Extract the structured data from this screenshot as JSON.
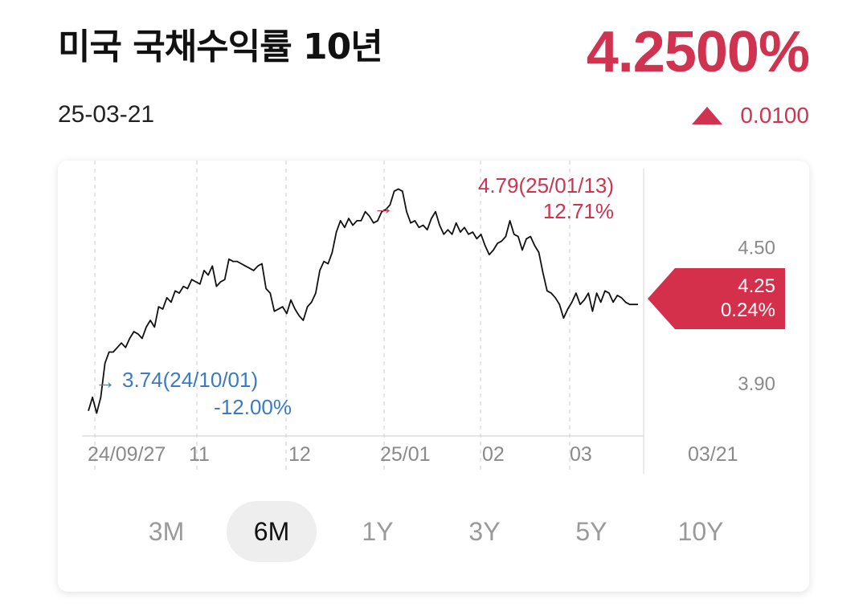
{
  "header": {
    "title": "미국 국채수익률 10년",
    "date": "25-03-21",
    "price": "4.2500%",
    "change": "0.0100",
    "change_direction": "up",
    "up_color": "#d0334f"
  },
  "chart_data": {
    "type": "line",
    "x_tick_labels": [
      "24/09/27",
      "11",
      "12",
      "25/01",
      "02",
      "03",
      "03/21"
    ],
    "y_tick_labels": [
      "4.50",
      "3.90"
    ],
    "ylim": [
      3.68,
      4.85
    ],
    "grid": "vertical dashed",
    "series": [
      {
        "color": "#111111",
        "values": [
          3.78,
          3.84,
          3.77,
          3.84,
          3.99,
          4.04,
          4.04,
          4.06,
          4.08,
          4.06,
          4.1,
          4.13,
          4.12,
          4.1,
          4.15,
          4.18,
          4.15,
          4.24,
          4.23,
          4.28,
          4.26,
          4.31,
          4.3,
          4.33,
          4.32,
          4.36,
          4.35,
          4.34,
          4.4,
          4.38,
          4.42,
          4.33,
          4.35,
          4.36,
          4.45,
          4.44,
          4.44,
          4.43,
          4.42,
          4.41,
          4.4,
          4.42,
          4.43,
          4.32,
          4.3,
          4.22,
          4.23,
          4.24,
          4.21,
          4.27,
          4.23,
          4.2,
          4.18,
          4.24,
          4.26,
          4.3,
          4.4,
          4.44,
          4.43,
          4.48,
          4.57,
          4.62,
          4.59,
          4.63,
          4.6,
          4.62,
          4.62,
          4.66,
          4.64,
          4.61,
          4.62,
          4.66,
          4.67,
          4.69,
          4.75,
          4.76,
          4.75,
          4.66,
          4.61,
          4.62,
          4.59,
          4.6,
          4.58,
          4.63,
          4.66,
          4.6,
          4.56,
          4.58,
          4.56,
          4.61,
          4.57,
          4.59,
          4.56,
          4.57,
          4.54,
          4.56,
          4.51,
          4.47,
          4.49,
          4.52,
          4.53,
          4.55,
          4.62,
          4.56,
          4.55,
          4.49,
          4.54,
          4.55,
          4.51,
          4.48,
          4.39,
          4.31,
          4.3,
          4.28,
          4.25,
          4.19,
          4.23,
          4.26,
          4.3,
          4.25,
          4.27,
          4.3,
          4.22,
          4.3,
          4.26,
          4.31,
          4.3,
          4.26,
          4.29,
          4.28,
          4.26,
          4.25,
          4.25,
          4.25
        ]
      }
    ],
    "max_annotation": {
      "label": "4.79(25/01/13)",
      "pct": "12.71%",
      "color": "#d0334f"
    },
    "min_annotation": {
      "label": "3.74(24/10/01)",
      "pct": "-12.00%",
      "color": "#3b7bc4"
    },
    "current_marker": {
      "value": "4.25",
      "pct": "0.24%",
      "color": "#d4304b"
    },
    "arrow_glyph": "→"
  },
  "period_tabs": {
    "items": [
      "3M",
      "6M",
      "1Y",
      "3Y",
      "5Y",
      "10Y"
    ],
    "selected": "6M"
  }
}
